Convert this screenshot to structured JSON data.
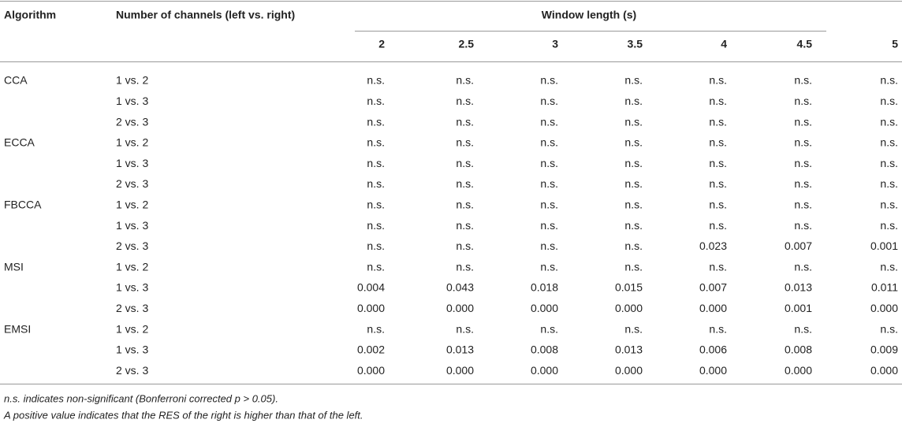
{
  "table": {
    "header": {
      "algorithm": "Algorithm",
      "channels": "Number of channels (left vs. right)",
      "window_length": "Window length (s)",
      "windows": [
        "2",
        "2.5",
        "3",
        "3.5",
        "4",
        "4.5",
        "5"
      ]
    },
    "groups": [
      {
        "algorithm": "CCA",
        "rows": [
          {
            "channels": "1 vs. 2",
            "values": [
              "n.s.",
              "n.s.",
              "n.s.",
              "n.s.",
              "n.s.",
              "n.s.",
              "n.s."
            ]
          },
          {
            "channels": "1 vs. 3",
            "values": [
              "n.s.",
              "n.s.",
              "n.s.",
              "n.s.",
              "n.s.",
              "n.s.",
              "n.s."
            ]
          },
          {
            "channels": "2 vs. 3",
            "values": [
              "n.s.",
              "n.s.",
              "n.s.",
              "n.s.",
              "n.s.",
              "n.s.",
              "n.s."
            ]
          }
        ]
      },
      {
        "algorithm": "ECCA",
        "rows": [
          {
            "channels": "1 vs. 2",
            "values": [
              "n.s.",
              "n.s.",
              "n.s.",
              "n.s.",
              "n.s.",
              "n.s.",
              "n.s."
            ]
          },
          {
            "channels": "1 vs. 3",
            "values": [
              "n.s.",
              "n.s.",
              "n.s.",
              "n.s.",
              "n.s.",
              "n.s.",
              "n.s."
            ]
          },
          {
            "channels": "2 vs. 3",
            "values": [
              "n.s.",
              "n.s.",
              "n.s.",
              "n.s.",
              "n.s.",
              "n.s.",
              "n.s."
            ]
          }
        ]
      },
      {
        "algorithm": "FBCCA",
        "rows": [
          {
            "channels": "1 vs. 2",
            "values": [
              "n.s.",
              "n.s.",
              "n.s.",
              "n.s.",
              "n.s.",
              "n.s.",
              "n.s."
            ]
          },
          {
            "channels": "1 vs. 3",
            "values": [
              "n.s.",
              "n.s.",
              "n.s.",
              "n.s.",
              "n.s.",
              "n.s.",
              "n.s."
            ]
          },
          {
            "channels": "2 vs. 3",
            "values": [
              "n.s.",
              "n.s.",
              "n.s.",
              "n.s.",
              "0.023",
              "0.007",
              "0.001"
            ]
          }
        ]
      },
      {
        "algorithm": "MSI",
        "rows": [
          {
            "channels": "1 vs. 2",
            "values": [
              "n.s.",
              "n.s.",
              "n.s.",
              "n.s.",
              "n.s.",
              "n.s.",
              "n.s."
            ]
          },
          {
            "channels": "1 vs. 3",
            "values": [
              "0.004",
              "0.043",
              "0.018",
              "0.015",
              "0.007",
              "0.013",
              "0.011"
            ]
          },
          {
            "channels": "2 vs. 3",
            "values": [
              "0.000",
              "0.000",
              "0.000",
              "0.000",
              "0.000",
              "0.001",
              "0.000"
            ]
          }
        ]
      },
      {
        "algorithm": "EMSI",
        "rows": [
          {
            "channels": "1 vs. 2",
            "values": [
              "n.s.",
              "n.s.",
              "n.s.",
              "n.s.",
              "n.s.",
              "n.s.",
              "n.s."
            ]
          },
          {
            "channels": "1 vs. 3",
            "values": [
              "0.002",
              "0.013",
              "0.008",
              "0.013",
              "0.006",
              "0.008",
              "0.009"
            ]
          },
          {
            "channels": "2 vs. 3",
            "values": [
              "0.000",
              "0.000",
              "0.000",
              "0.000",
              "0.000",
              "0.000",
              "0.000"
            ]
          }
        ]
      }
    ]
  },
  "footnotes": [
    "n.s. indicates non-significant (Bonferroni corrected p > 0.05).",
    "A positive value indicates that the RES of the right is higher than that of the left."
  ]
}
